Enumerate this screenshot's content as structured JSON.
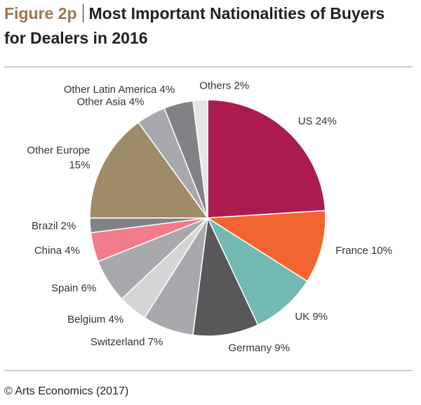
{
  "chart_data": {
    "type": "pie",
    "figure_label": "Figure 2p",
    "title": "Most Important Nationalities of Buyers for Dealers in 2016",
    "categories": [
      "US",
      "France",
      "UK",
      "Germany",
      "Switzerland",
      "Belgium",
      "Spain",
      "China",
      "Brazil",
      "Other Europe",
      "Other Asia",
      "Other Latin America",
      "Others"
    ],
    "values": [
      24,
      10,
      9,
      9,
      7,
      4,
      6,
      4,
      2,
      15,
      4,
      4,
      2
    ],
    "value_labels": [
      "24%",
      "10%",
      "9%",
      "9%",
      "7%",
      "4%",
      "6%",
      "4%",
      "2%",
      "15%",
      "4%",
      "4%",
      "2%"
    ],
    "colors": [
      "#aa1c50",
      "#f26531",
      "#72b8b3",
      "#58585a",
      "#a7a9ac",
      "#d4d5d6",
      "#a7a9ac",
      "#f07b8b",
      "#808285",
      "#9e8b68",
      "#a7a9ac",
      "#808285",
      "#e4e5e6"
    ],
    "source": "© Arts Economics (2017)"
  }
}
